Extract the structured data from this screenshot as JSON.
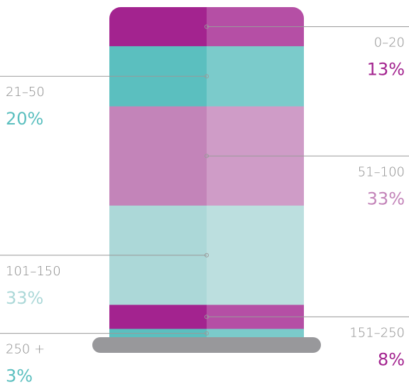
{
  "chart_data": {
    "type": "stacked-layers",
    "categories": [
      "0–20",
      "21–50",
      "51–100",
      "101–150",
      "151–250",
      "250 +"
    ],
    "values": [
      13,
      20,
      33,
      33,
      8,
      3
    ],
    "value_labels": [
      "13%",
      "20%",
      "33%",
      "33%",
      "8%",
      "3%"
    ],
    "colors": [
      "#a3238f",
      "#5bbfbf",
      "#c384b9",
      "#acd8d8",
      "#a3238f",
      "#5bbfbf"
    ]
  }
}
